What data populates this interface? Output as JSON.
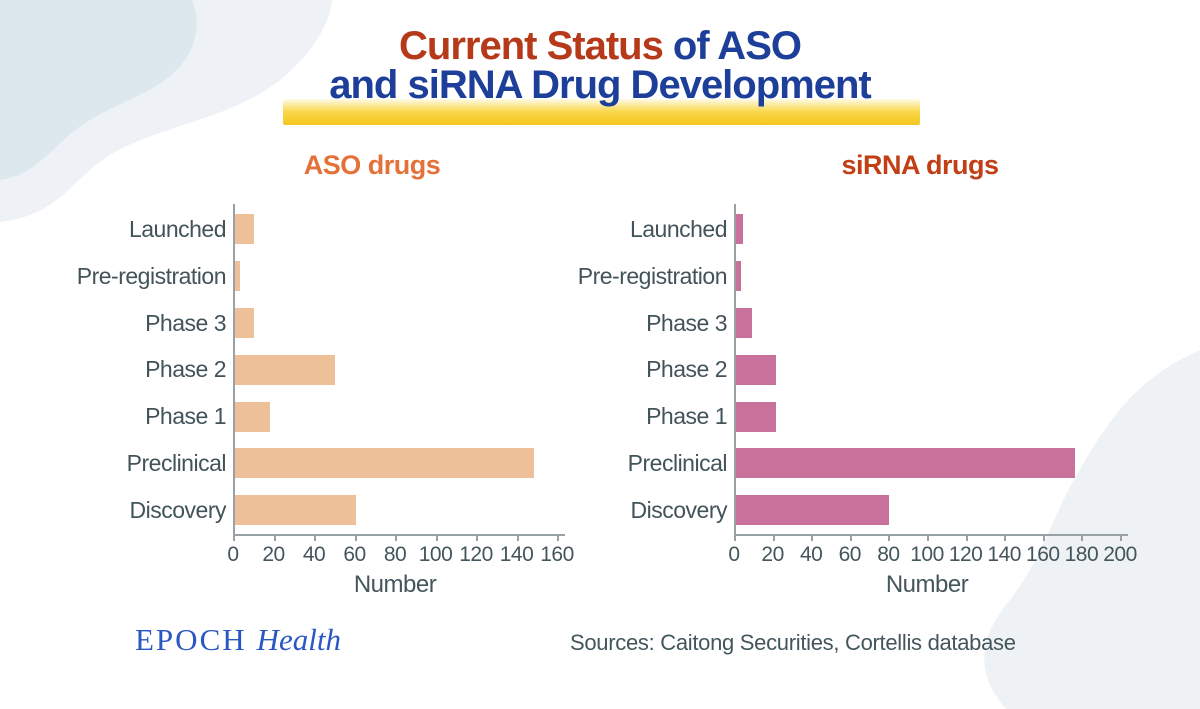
{
  "header": {
    "title_red": "Current Status",
    "title_rest": " of ASO",
    "title_line2": "and siRNA Drug Development",
    "accent_red": "#b63a1a",
    "accent_navy": "#1d3e99",
    "highlight_color": "#f5c71d"
  },
  "chart_data": [
    {
      "type": "bar",
      "orientation": "horizontal",
      "title": "ASO drugs",
      "title_color": "#e5713a",
      "categories": [
        "Launched",
        "Pre-registration",
        "Phase 3",
        "Phase 2",
        "Phase 1",
        "Preclinical",
        "Discovery"
      ],
      "values": [
        10,
        3,
        10,
        50,
        18,
        148,
        60
      ],
      "xlabel": "Number",
      "xlim": [
        0,
        160
      ],
      "tick_step": 20,
      "bar_color": "#edc09a",
      "grid": false,
      "legend": false
    },
    {
      "type": "bar",
      "orientation": "horizontal",
      "title": "siRNA drugs",
      "title_color": "#c23f16",
      "categories": [
        "Launched",
        "Pre-registration",
        "Phase 3",
        "Phase 2",
        "Phase 1",
        "Preclinical",
        "Discovery"
      ],
      "values": [
        4,
        3,
        9,
        21,
        21,
        176,
        80
      ],
      "xlabel": "Number",
      "xlim": [
        0,
        200
      ],
      "tick_step": 20,
      "bar_color": "#c7719b",
      "grid": false,
      "legend": false
    }
  ],
  "footer": {
    "brand_epoch": "EPOCH",
    "brand_health": "Health",
    "sources": "Sources: Caitong Securities, Cortellis database"
  }
}
